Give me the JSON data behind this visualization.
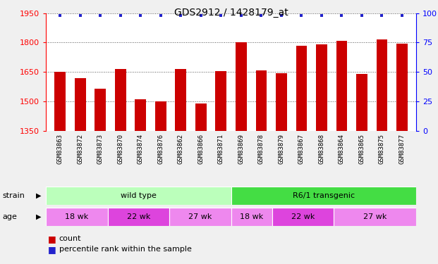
{
  "title": "GDS2912 / 1428179_at",
  "samples": [
    "GSM83863",
    "GSM83872",
    "GSM83873",
    "GSM83870",
    "GSM83874",
    "GSM83876",
    "GSM83862",
    "GSM83866",
    "GSM83871",
    "GSM83869",
    "GSM83878",
    "GSM83879",
    "GSM83867",
    "GSM83868",
    "GSM83864",
    "GSM83865",
    "GSM83875",
    "GSM83877"
  ],
  "counts": [
    1650,
    1618,
    1565,
    1665,
    1510,
    1500,
    1665,
    1490,
    1653,
    1800,
    1657,
    1645,
    1783,
    1790,
    1808,
    1640,
    1815,
    1795
  ],
  "bar_color": "#cc0000",
  "dot_color": "#2222cc",
  "ylim_left": [
    1350,
    1950
  ],
  "ylim_right": [
    0,
    100
  ],
  "yticks_left": [
    1350,
    1500,
    1650,
    1800,
    1950
  ],
  "yticks_right": [
    0,
    25,
    50,
    75,
    100
  ],
  "strain_groups": [
    {
      "label": "wild type",
      "start": 0,
      "end": 9,
      "color": "#bbffbb"
    },
    {
      "label": "R6/1 transgenic",
      "start": 9,
      "end": 18,
      "color": "#44dd44"
    }
  ],
  "age_groups": [
    {
      "label": "18 wk",
      "start": 0,
      "end": 3,
      "color": "#ee88ee"
    },
    {
      "label": "22 wk",
      "start": 3,
      "end": 6,
      "color": "#dd44dd"
    },
    {
      "label": "27 wk",
      "start": 6,
      "end": 9,
      "color": "#ee88ee"
    },
    {
      "label": "18 wk",
      "start": 9,
      "end": 11,
      "color": "#ee88ee"
    },
    {
      "label": "22 wk",
      "start": 11,
      "end": 14,
      "color": "#dd44dd"
    },
    {
      "label": "27 wk",
      "start": 14,
      "end": 18,
      "color": "#ee88ee"
    }
  ],
  "xticklabel_fontsize": 6.5,
  "title_fontsize": 10,
  "fig_bg": "#f0f0f0",
  "plot_bg": "#ffffff",
  "tick_label_bg": "#c8c8c8"
}
